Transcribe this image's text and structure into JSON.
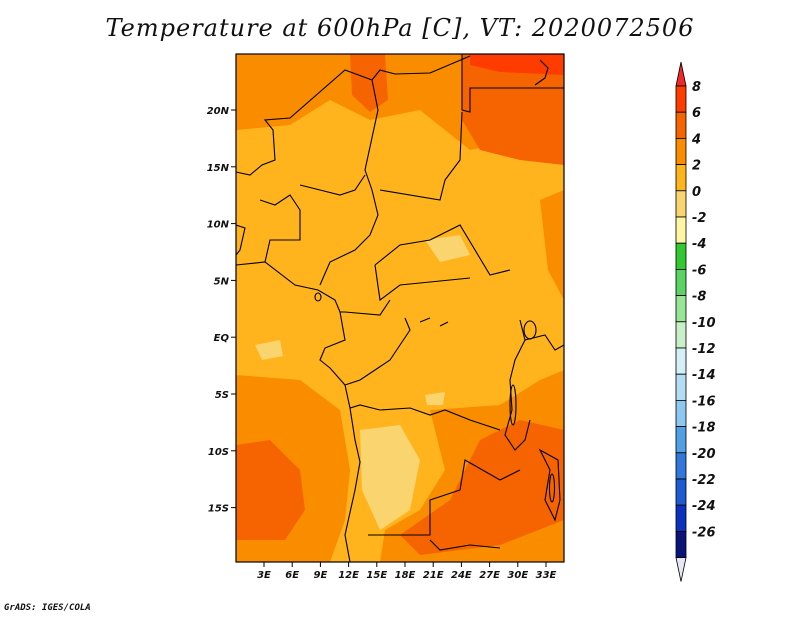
{
  "title": "Temperature at 600hPa [C], VT: 2020072506",
  "credit": "GrADS: IGES/COLA",
  "map": {
    "lon_labels": [
      "3E",
      "6E",
      "9E",
      "12E",
      "15E",
      "18E",
      "21E",
      "24E",
      "27E",
      "30E",
      "33E"
    ],
    "lat_labels": [
      "20N",
      "15N",
      "10N",
      "5N",
      "EQ",
      "5S",
      "10S",
      "15S"
    ]
  },
  "colorbar": {
    "labels": [
      "8",
      "6",
      "4",
      "2",
      "0",
      "-2",
      "-4",
      "-6",
      "-8",
      "-10",
      "-12",
      "-14",
      "-16",
      "-18",
      "-20",
      "-22",
      "-24",
      "-26"
    ],
    "colors": [
      "#f0282a",
      "#ff3c00",
      "#f56400",
      "#fa8c00",
      "#ffb41e",
      "#fad46e",
      "#fff5a5",
      "#32c832",
      "#5ad264",
      "#96e696",
      "#c8f0c8",
      "#d2f0f5",
      "#b4dcf5",
      "#8cc8f0",
      "#50a0e6",
      "#3278dc",
      "#1e5ad2",
      "#0a32be",
      "#0a1478",
      "#e6e6f5"
    ]
  }
}
